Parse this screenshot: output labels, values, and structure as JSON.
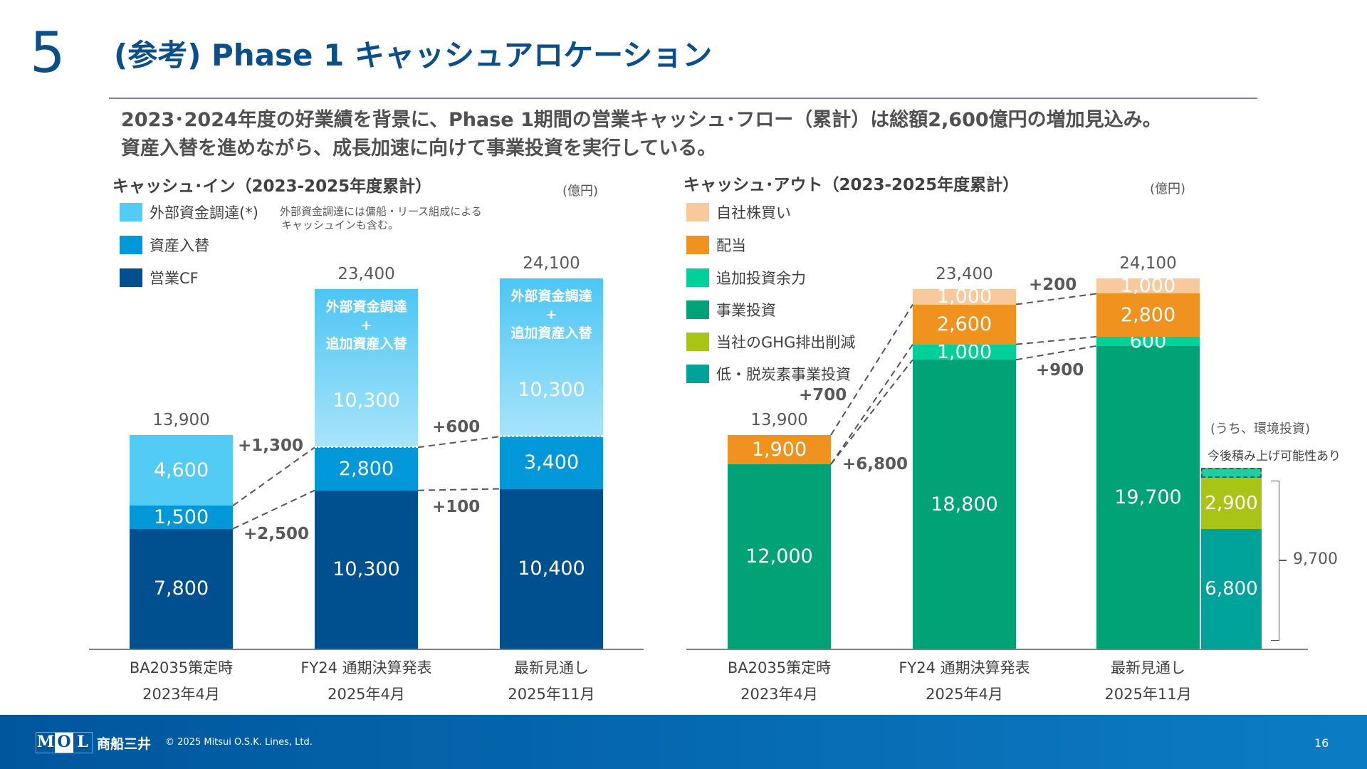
{
  "header": {
    "section_number": "5",
    "title": "(参考)  Phase 1 キャッシュアロケーション"
  },
  "headline": [
    "2023･2024年度の好業績を背景に、Phase 1期間の営業キャッシュ･フロー（累計）は総額2,600億円の増加見込み。",
    "資産入替を進めながら、成長加速に向けて事業投資を実行している。"
  ],
  "footer": {
    "logo": "MOL 商船三井",
    "copyright": "© 2025 Mitsui O.S.K. Lines, Ltd.",
    "page": "16"
  },
  "chart_data": [
    {
      "type": "bar",
      "stacked": true,
      "title": "キャッシュ･イン（2023-2025年度累計）",
      "unit": "(億円)",
      "categories": [
        [
          "BA2035策定時",
          "2023年4月"
        ],
        [
          "FY24 通期決算発表",
          "2025年4月"
        ],
        [
          "最新見通し",
          "2025年11月"
        ]
      ],
      "series": [
        {
          "name": "営業CF",
          "color": "#00508f",
          "values": [
            7800,
            10300,
            10400
          ]
        },
        {
          "name": "資産入替",
          "color": "#0098d8",
          "values": [
            1500,
            2800,
            3400
          ]
        },
        {
          "name": "外部資金調達(*)",
          "color": "#52cbf5",
          "values": [
            4600,
            10300,
            10300
          ]
        }
      ],
      "totals": [
        13900,
        23400,
        24100
      ],
      "totals_labels": [
        "13,900",
        "23,400",
        "24,100"
      ],
      "segment_labels": [
        [
          "7,800",
          "1,500",
          "4,600"
        ],
        [
          "10,300",
          "2,800",
          "10,300"
        ],
        [
          "10,400",
          "3,400",
          "10,300"
        ]
      ],
      "inner_caption": [
        "外部資金調達",
        "+",
        "追加資産入替"
      ],
      "legend_note": [
        "外部資金調達には傭船・リース組成による",
        "キャッシュインも含む。"
      ],
      "deltas": [
        "+1,300",
        "+2,500",
        "+600",
        "+100"
      ]
    },
    {
      "type": "bar",
      "stacked": true,
      "title": "キャッシュ･アウト（2023-2025年度累計）",
      "unit": "(億円)",
      "categories": [
        [
          "BA2035策定時",
          "2023年4月"
        ],
        [
          "FY24 通期決算発表",
          "2025年4月"
        ],
        [
          "最新見通し",
          "2025年11月"
        ]
      ],
      "series": [
        {
          "name": "事業投資",
          "color": "#00a276",
          "values": [
            12000,
            18800,
            19700
          ]
        },
        {
          "name": "追加投資余力",
          "color": "#00d09a",
          "values": [
            0,
            1000,
            600
          ]
        },
        {
          "name": "配当",
          "color": "#f0921e",
          "values": [
            1900,
            2600,
            2800
          ]
        },
        {
          "name": "自社株買い",
          "color": "#f7c99c",
          "values": [
            0,
            1000,
            1000
          ]
        }
      ],
      "extra_legend": [
        {
          "name": "当社のGHG排出削減",
          "color": "#a9c414"
        },
        {
          "name": "低・脱炭素事業投資",
          "color": "#00a39a"
        }
      ],
      "totals": [
        13900,
        23400,
        24100
      ],
      "totals_labels": [
        "13,900",
        "23,400",
        "24,100"
      ],
      "segment_labels": [
        [
          "12,000",
          "",
          "1,900",
          ""
        ],
        [
          "18,800",
          "1,000",
          "2,600",
          "1,000"
        ],
        [
          "19,700",
          "600",
          "2,800",
          "1,000"
        ]
      ],
      "deltas": [
        "+700",
        "+6,800",
        "+200",
        "+900"
      ],
      "environment": {
        "caption": "(うち、環境投資)",
        "note": "今後積み上げ可能性あり",
        "total": 9700,
        "total_label": "9,700",
        "segments": [
          {
            "name": "低・脱炭素事業投資",
            "value": 6800,
            "label": "6,800",
            "color": "#00a39a"
          },
          {
            "name": "当社のGHG排出削減",
            "value": 2900,
            "label": "2,900",
            "color": "#a9c414"
          }
        ]
      }
    }
  ]
}
